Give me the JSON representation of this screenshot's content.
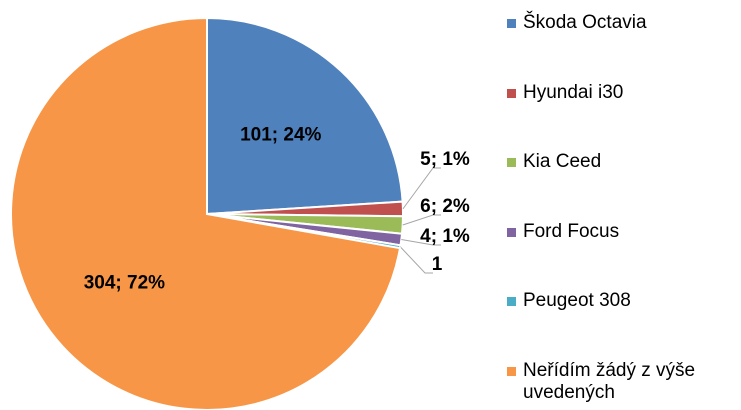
{
  "chart_data": {
    "type": "pie",
    "categories": [
      "Škoda Octavia",
      "Hyundai i30",
      "Kia Ceed",
      "Ford Focus",
      "Peugeot 308",
      "Neřídím žádý z výše uvedených"
    ],
    "values": [
      101,
      5,
      6,
      4,
      1,
      304
    ],
    "value_labels": [
      "101; 24%",
      "5; 1%",
      "6; 2%",
      "4; 1%",
      "1",
      "304; 72%"
    ],
    "colors": [
      "#4f81bd",
      "#c0504d",
      "#9bbb59",
      "#8064a2",
      "#4bacc6",
      "#f79646"
    ],
    "legend": "right"
  }
}
